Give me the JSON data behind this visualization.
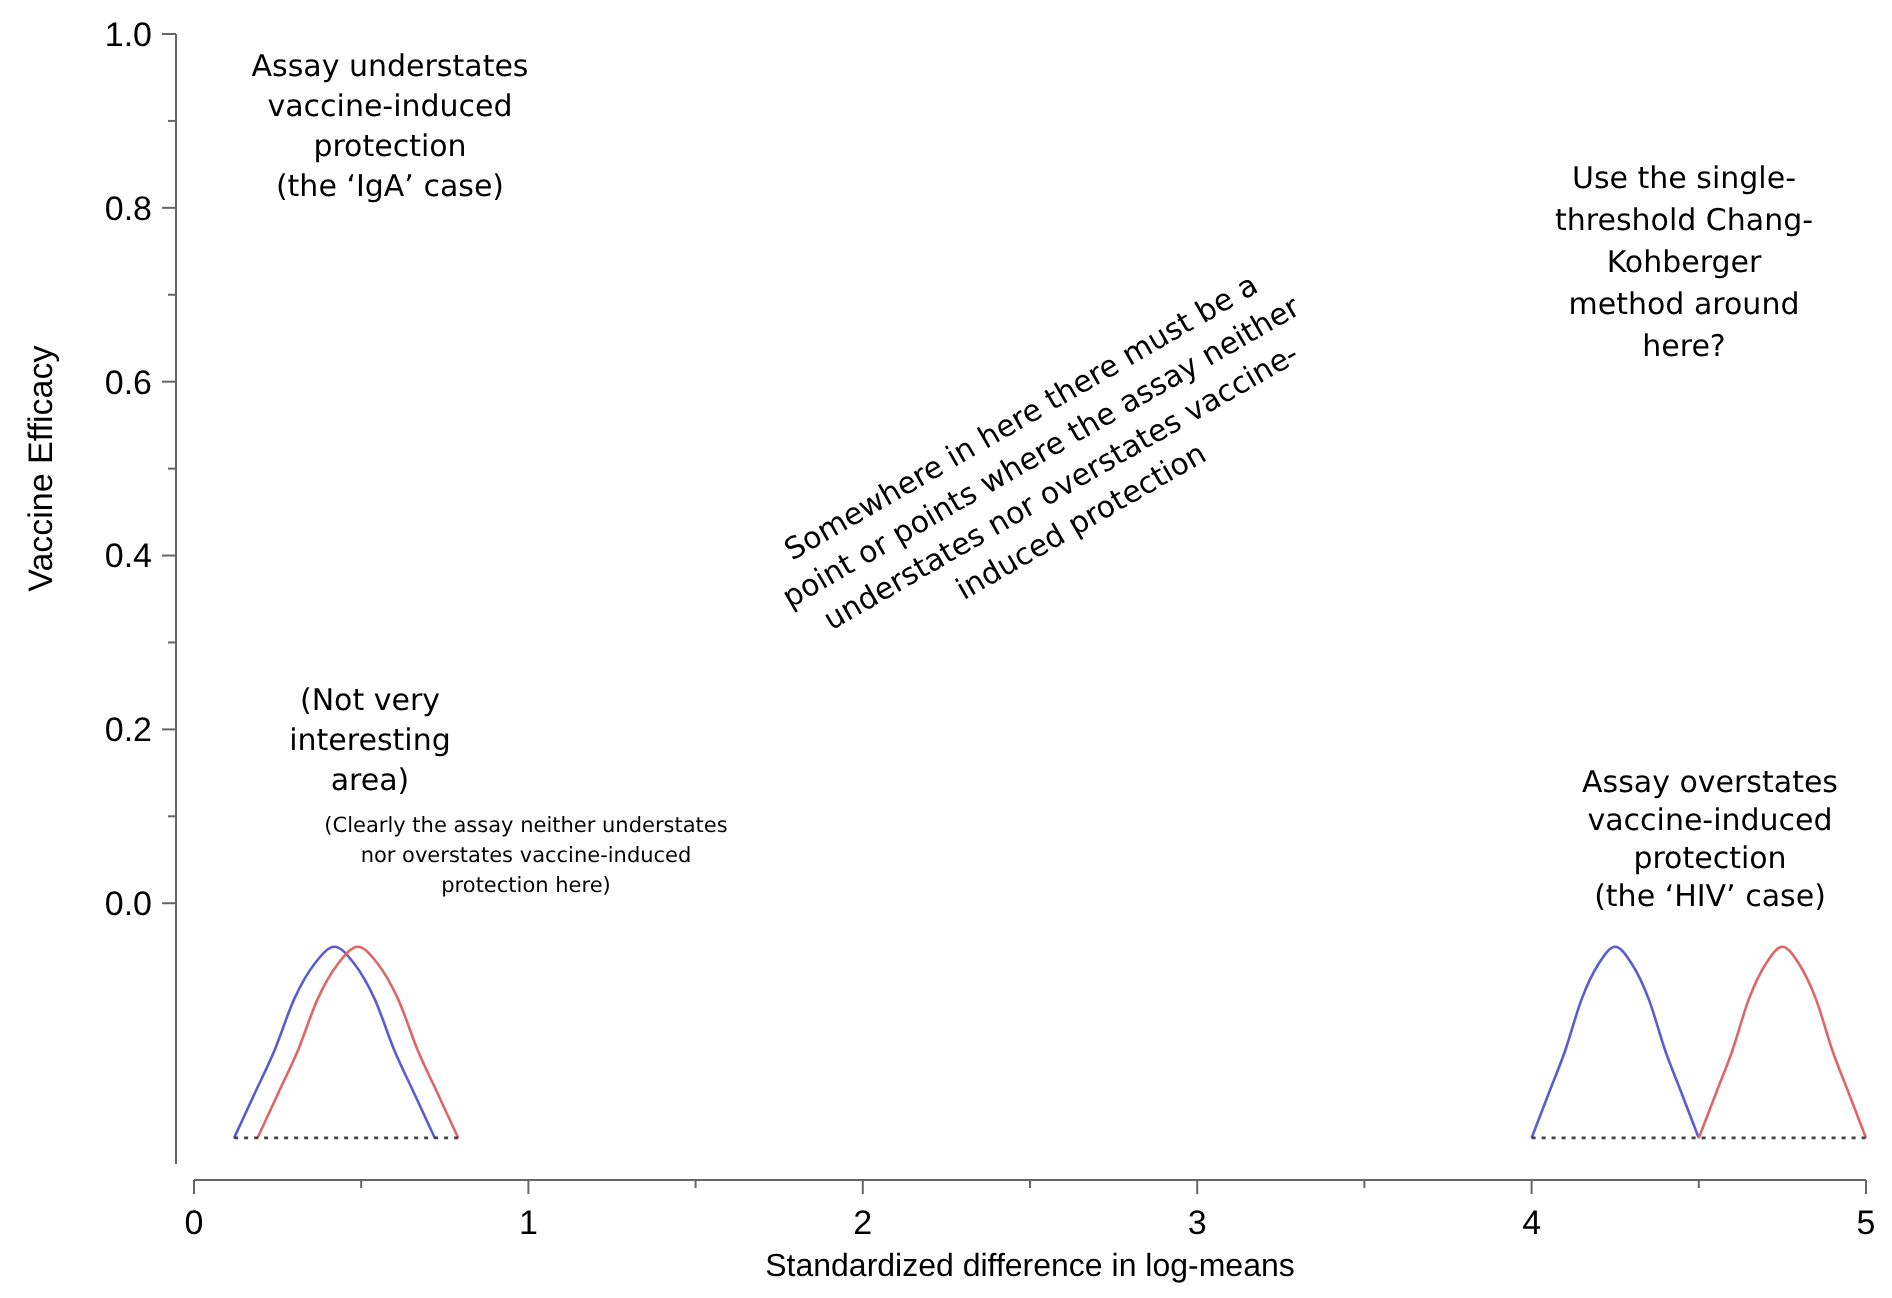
{
  "chart_data": {
    "type": "line",
    "xlabel": "Standardized difference in log-means",
    "ylabel": "Vaccine Efficacy",
    "xlim": [
      0,
      5
    ],
    "xticks": [
      0,
      {
        "value": 0.5,
        "label": null
      },
      1,
      {
        "value": 1.5,
        "label": null
      },
      2,
      {
        "value": 2.5,
        "label": null
      },
      3,
      {
        "value": 3.5,
        "label": null
      },
      4,
      {
        "value": 4.5,
        "label": null
      },
      5
    ],
    "ylim": [
      -0.3,
      1.0
    ],
    "yticks": [
      {
        "value": 0,
        "label": "0.0"
      },
      {
        "value": 0.1,
        "label": null
      },
      0.2,
      {
        "value": 0.3,
        "label": null
      },
      0.4,
      {
        "value": 0.5,
        "label": null
      },
      0.6,
      {
        "value": 0.7,
        "label": null
      },
      0.8,
      {
        "value": 0.9,
        "label": null
      },
      {
        "value": 1,
        "label": "1.0"
      }
    ],
    "series": [
      {
        "color": "#5b5bd6",
        "x": [
          0.12,
          0.18,
          0.24,
          0.3,
          0.36,
          0.42,
          0.48,
          0.54,
          0.6,
          0.66,
          0.72
        ],
        "values": [
          -0.27,
          -0.22,
          -0.17,
          -0.11,
          -0.07,
          -0.05,
          -0.07,
          -0.11,
          -0.17,
          -0.22,
          -0.27
        ]
      },
      {
        "color": "#e06666",
        "x": [
          0.19,
          0.25,
          0.31,
          0.37,
          0.43,
          0.49,
          0.55,
          0.61,
          0.67,
          0.73,
          0.79
        ],
        "values": [
          -0.27,
          -0.22,
          -0.17,
          -0.11,
          -0.07,
          -0.05,
          -0.07,
          -0.11,
          -0.17,
          -0.22,
          -0.27
        ]
      },
      {
        "color": "#5b5bd6",
        "x": [
          4.0,
          4.05,
          4.1,
          4.15,
          4.2,
          4.25,
          4.3,
          4.35,
          4.4,
          4.45,
          4.5
        ],
        "values": [
          -0.27,
          -0.22,
          -0.17,
          -0.11,
          -0.07,
          -0.05,
          -0.07,
          -0.11,
          -0.17,
          -0.22,
          -0.27
        ]
      },
      {
        "color": "#e06666",
        "x": [
          4.5,
          4.55,
          4.6,
          4.65,
          4.7,
          4.75,
          4.8,
          4.85,
          4.9,
          4.95,
          5.0
        ],
        "values": [
          -0.27,
          -0.22,
          -0.17,
          -0.11,
          -0.07,
          -0.05,
          -0.07,
          -0.11,
          -0.17,
          -0.22,
          -0.27
        ]
      },
      {
        "color": "#444444",
        "line_style": "dotted",
        "x": [
          0.12,
          0.79
        ],
        "values": [
          -0.27,
          -0.27
        ]
      },
      {
        "color": "#444444",
        "line_style": "dotted",
        "x": [
          4.0,
          5.0
        ],
        "values": [
          -0.27,
          -0.27
        ]
      }
    ],
    "annotations": [
      "Assay understates\nvaccine-induced\nprotection\n(the ‘IgA’ case)",
      "Use the single-\nthreshold Chang-\nKohberger\nmethod around\nhere?",
      "Somewhere in here there must be a\npoint or points where the assay neither\nunderstates nor overstates vaccine-\ninduced protection",
      "(Not very\ninteresting\narea)",
      "(Clearly the assay neither  understates\nnor overstates  vaccine-induced\nprotection here)",
      "Assay overstates\nvaccine-induced\nprotection\n(the ‘HIV’ case)"
    ]
  }
}
